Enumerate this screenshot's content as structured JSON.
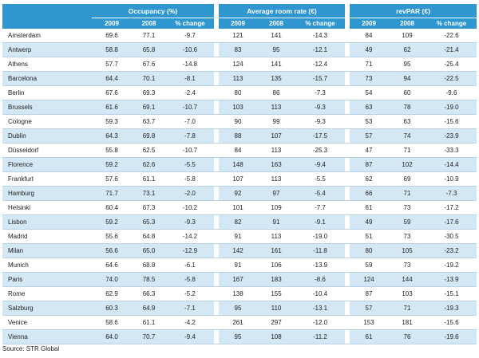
{
  "groups": [
    "Occupancy (%)",
    "Average room rate (€)",
    "revPAR (€)"
  ],
  "columns": [
    "2009",
    "2008",
    "% change",
    "2009",
    "2008",
    "% change",
    "2009",
    "2008",
    "% change"
  ],
  "rows": [
    {
      "city": "Amsterdam",
      "v": [
        "69.6",
        "77.1",
        "-9.7",
        "121",
        "141",
        "-14.3",
        "84",
        "109",
        "-22.6"
      ]
    },
    {
      "city": "Antwerp",
      "v": [
        "58.8",
        "65.8",
        "-10.6",
        "83",
        "95",
        "-12.1",
        "49",
        "62",
        "-21.4"
      ]
    },
    {
      "city": "Athens",
      "v": [
        "57.7",
        "67.6",
        "-14.8",
        "124",
        "141",
        "-12.4",
        "71",
        "95",
        "-25.4"
      ]
    },
    {
      "city": "Barcelona",
      "v": [
        "64.4",
        "70.1",
        "-8.1",
        "113",
        "135",
        "-15.7",
        "73",
        "94",
        "-22.5"
      ]
    },
    {
      "city": "Berlin",
      "v": [
        "67.6",
        "69.3",
        "-2.4",
        "80",
        "86",
        "-7.3",
        "54",
        "60",
        "-9.6"
      ]
    },
    {
      "city": "Brussels",
      "v": [
        "61.6",
        "69.1",
        "-10.7",
        "103",
        "113",
        "-9.3",
        "63",
        "78",
        "-19.0"
      ]
    },
    {
      "city": "Cologne",
      "v": [
        "59.3",
        "63.7",
        "-7.0",
        "90",
        "99",
        "-9.3",
        "53",
        "63",
        "-15.6"
      ]
    },
    {
      "city": "Dublin",
      "v": [
        "64.3",
        "69.8",
        "-7.8",
        "88",
        "107",
        "-17.5",
        "57",
        "74",
        "-23.9"
      ]
    },
    {
      "city": "Düsseldorf",
      "v": [
        "55.8",
        "62.5",
        "-10.7",
        "84",
        "113",
        "-25.3",
        "47",
        "71",
        "-33.3"
      ]
    },
    {
      "city": "Florence",
      "v": [
        "59.2",
        "62.6",
        "-5.5",
        "148",
        "163",
        "-9.4",
        "87",
        "102",
        "-14.4"
      ]
    },
    {
      "city": "Frankfurt",
      "v": [
        "57.6",
        "61.1",
        "-5.8",
        "107",
        "113",
        "-5.5",
        "62",
        "69",
        "-10.9"
      ]
    },
    {
      "city": "Hamburg",
      "v": [
        "71.7",
        "73.1",
        "-2.0",
        "92",
        "97",
        "-5.4",
        "66",
        "71",
        "-7.3"
      ]
    },
    {
      "city": "Helsinki",
      "v": [
        "60.4",
        "67.3",
        "-10.2",
        "101",
        "109",
        "-7.7",
        "61",
        "73",
        "-17.2"
      ]
    },
    {
      "city": "Lisbon",
      "v": [
        "59.2",
        "65.3",
        "-9.3",
        "82",
        "91",
        "-9.1",
        "49",
        "59",
        "-17.6"
      ]
    },
    {
      "city": "Madrid",
      "v": [
        "55.6",
        "64.8",
        "-14.2",
        "91",
        "113",
        "-19.0",
        "51",
        "73",
        "-30.5"
      ]
    },
    {
      "city": "Milan",
      "v": [
        "56.6",
        "65.0",
        "-12.9",
        "142",
        "161",
        "-11.8",
        "80",
        "105",
        "-23.2"
      ]
    },
    {
      "city": "Munich",
      "v": [
        "64.6",
        "68.8",
        "-6.1",
        "91",
        "106",
        "-13.9",
        "59",
        "73",
        "-19.2"
      ]
    },
    {
      "city": "Paris",
      "v": [
        "74.0",
        "78.5",
        "-5.8",
        "167",
        "183",
        "-8.6",
        "124",
        "144",
        "-13.9"
      ]
    },
    {
      "city": "Rome",
      "v": [
        "62.9",
        "66.3",
        "-5.2",
        "138",
        "155",
        "-10.4",
        "87",
        "103",
        "-15.1"
      ]
    },
    {
      "city": "Salzburg",
      "v": [
        "60.3",
        "64.9",
        "-7.1",
        "95",
        "110",
        "-13.1",
        "57",
        "71",
        "-19.3"
      ]
    },
    {
      "city": "Venice",
      "v": [
        "58.6",
        "61.1",
        "-4.2",
        "261",
        "297",
        "-12.0",
        "153",
        "181",
        "-15.6"
      ]
    },
    {
      "city": "Vienna",
      "v": [
        "64.0",
        "70.7",
        "-9.4",
        "95",
        "108",
        "-11.2",
        "61",
        "76",
        "-19.6"
      ]
    }
  ],
  "source": "Source: STR Global",
  "colors": {
    "header_bg": "#2f96d0",
    "stripe": "#d4e7f5",
    "rule": "#b9d2e6"
  }
}
